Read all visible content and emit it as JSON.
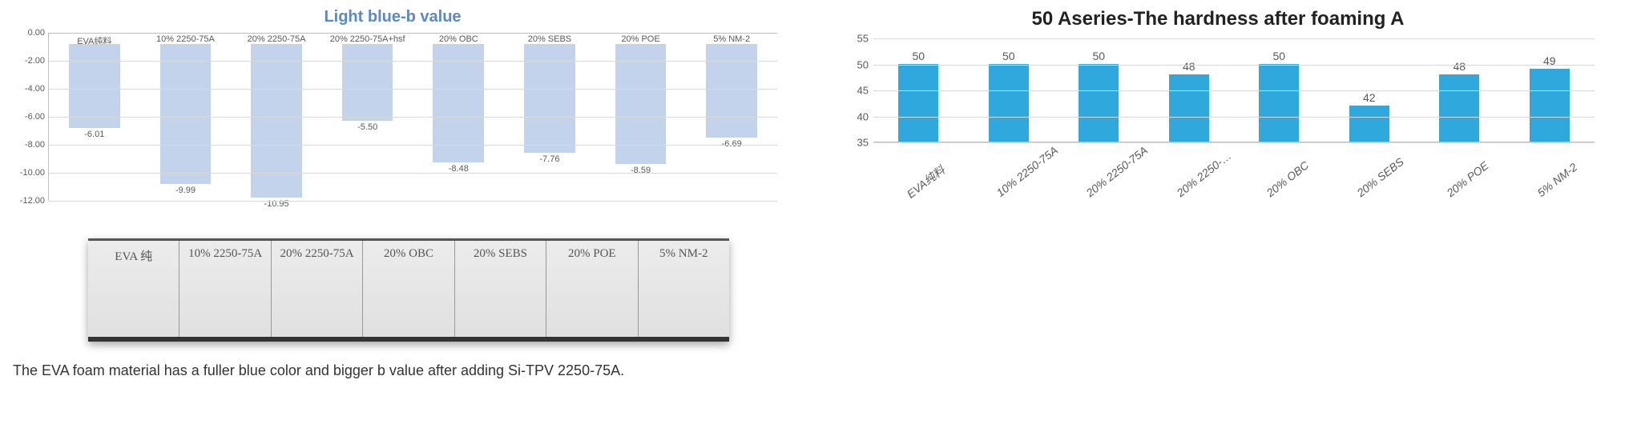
{
  "left_chart": {
    "type": "bar",
    "title": "Light blue-b value",
    "title_color": "#5b89c8",
    "title_fontsize": 20,
    "categories": [
      "EVA纯料",
      "10% 2250-75A",
      "20% 2250-75A",
      "20% 2250-75A+hsf",
      "20% OBC",
      "20% SEBS",
      "20% POE",
      "5% NM-2"
    ],
    "values": [
      -6.01,
      -9.99,
      -10.95,
      -5.5,
      -8.48,
      -7.76,
      -8.59,
      -6.69
    ],
    "value_labels": [
      "-6.01",
      "-9.99",
      "-10.95",
      "-5.50",
      "-8.48",
      "-7.76",
      "-8.59",
      "-6.69"
    ],
    "bar_color": "#c3d3eb",
    "ymin": -12.0,
    "ymax": 0.0,
    "ytick_step": 2.0,
    "yticks": [
      "0.00",
      "-2.00",
      "-4.00",
      "-6.00",
      "-8.00",
      "-10.00",
      "-12.00"
    ],
    "grid_color": "#d9d9d9",
    "axis_color": "#bfbfbf",
    "label_fontsize": 11
  },
  "samples": {
    "labels": [
      "EVA 纯",
      "10% 2250-75A",
      "20% 2250-75A",
      "20% OBC",
      "20% SEBS",
      "20% POE",
      "5% NM-2"
    ]
  },
  "caption": "The EVA foam material has a fuller blue color and bigger b value after adding Si-TPV 2250-75A.",
  "right_chart": {
    "type": "bar",
    "title": "50 Aseries-The hardness after foaming A",
    "title_color": "#222222",
    "title_fontsize": 24,
    "categories": [
      "EVA纯料",
      "10% 2250-75A",
      "20% 2250-75A",
      "20% 2250-…",
      "20% OBC",
      "20% SEBS",
      "20% POE",
      "5% NM-2"
    ],
    "values": [
      50,
      50,
      50,
      48,
      50,
      42,
      48,
      49
    ],
    "value_labels": [
      "50",
      "50",
      "50",
      "48",
      "50",
      "42",
      "48",
      "49"
    ],
    "bar_color": "#2fa8dd",
    "ymin": 35,
    "ymax": 55,
    "ytick_step": 5,
    "yticks": [
      "55",
      "50",
      "45",
      "40",
      "35"
    ],
    "grid_color": "#d9d9d9",
    "axis_color": "#bfbfbf",
    "label_fontsize": 14
  }
}
